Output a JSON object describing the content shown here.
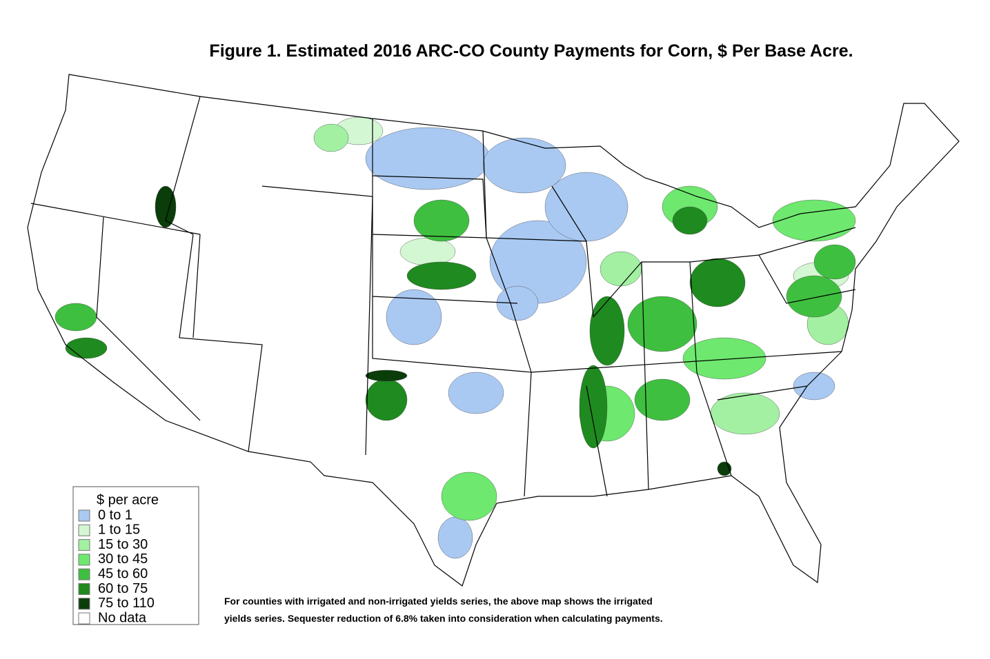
{
  "title": "Figure 1. Estimated 2016 ARC-CO County Payments for Corn, $ Per Base Acre.",
  "legend": {
    "title": "$ per acre",
    "items": [
      {
        "label": "0 to 1",
        "color": "#a9c9f2"
      },
      {
        "label": "1 to 15",
        "color": "#d3f6d3"
      },
      {
        "label": "15 to 30",
        "color": "#a3f0a3"
      },
      {
        "label": "30 to 45",
        "color": "#6ee86e"
      },
      {
        "label": "45 to 60",
        "color": "#3fbf3f"
      },
      {
        "label": "60 to 75",
        "color": "#1f8a1f"
      },
      {
        "label": "75 to 110",
        "color": "#0a3d0a"
      },
      {
        "label": "No data",
        "color": "#ffffff"
      }
    ]
  },
  "footnote": [
    "For counties with irrigated and non-irrigated yields series, the above map shows the irrigated",
    "yields series.  Sequester reduction of 6.8% taken into consideration when calculating payments."
  ]
}
